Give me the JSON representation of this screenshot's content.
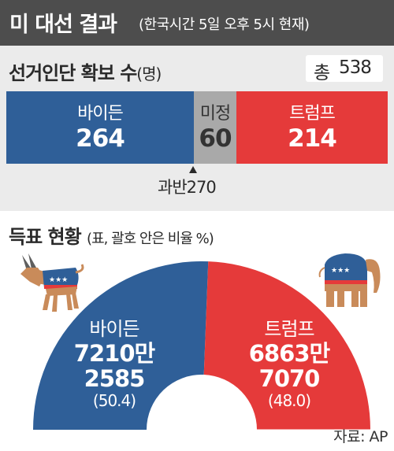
{
  "header": {
    "title": "미 대선 결과",
    "subtitle": "(한국시간 5일 오후 5시 현재)"
  },
  "electoral": {
    "title": "선거인단 확보 수",
    "unit": "(명)",
    "total_label": "총",
    "total_value": "538",
    "majority_label": "과반",
    "majority_value": "270"
  },
  "popular": {
    "title": "득표 현황",
    "note": "(표, 괄호 안은 비율 %)"
  },
  "chart_data": [
    {
      "type": "bar",
      "orientation": "horizontal-stacked",
      "title": "선거인단 확보 수(명)",
      "total": 538,
      "majority": 270,
      "categories": [
        "바이든",
        "미정",
        "트럼프"
      ],
      "values": [
        264,
        60,
        214
      ],
      "value_labels": [
        "264",
        "60",
        "214"
      ],
      "colors": [
        "#2f5f98",
        "#a9a9a9",
        "#e53a3a"
      ]
    },
    {
      "type": "pie",
      "shape": "half-donut",
      "title": "득표 현황",
      "categories": [
        "바이든",
        "트럼프"
      ],
      "values": [
        72102585,
        68637070
      ],
      "vote_labels": [
        [
          "7210만",
          "2585"
        ],
        [
          "6863만",
          "7070"
        ]
      ],
      "percents": [
        50.4,
        48.0
      ],
      "percent_labels": [
        "(50.4)",
        "(48.0)"
      ],
      "colors": [
        "#2f5f98",
        "#e53a3a"
      ]
    }
  ],
  "icons": {
    "democrat": "donkey-icon",
    "republican": "elephant-icon"
  },
  "source": "자료: AP"
}
